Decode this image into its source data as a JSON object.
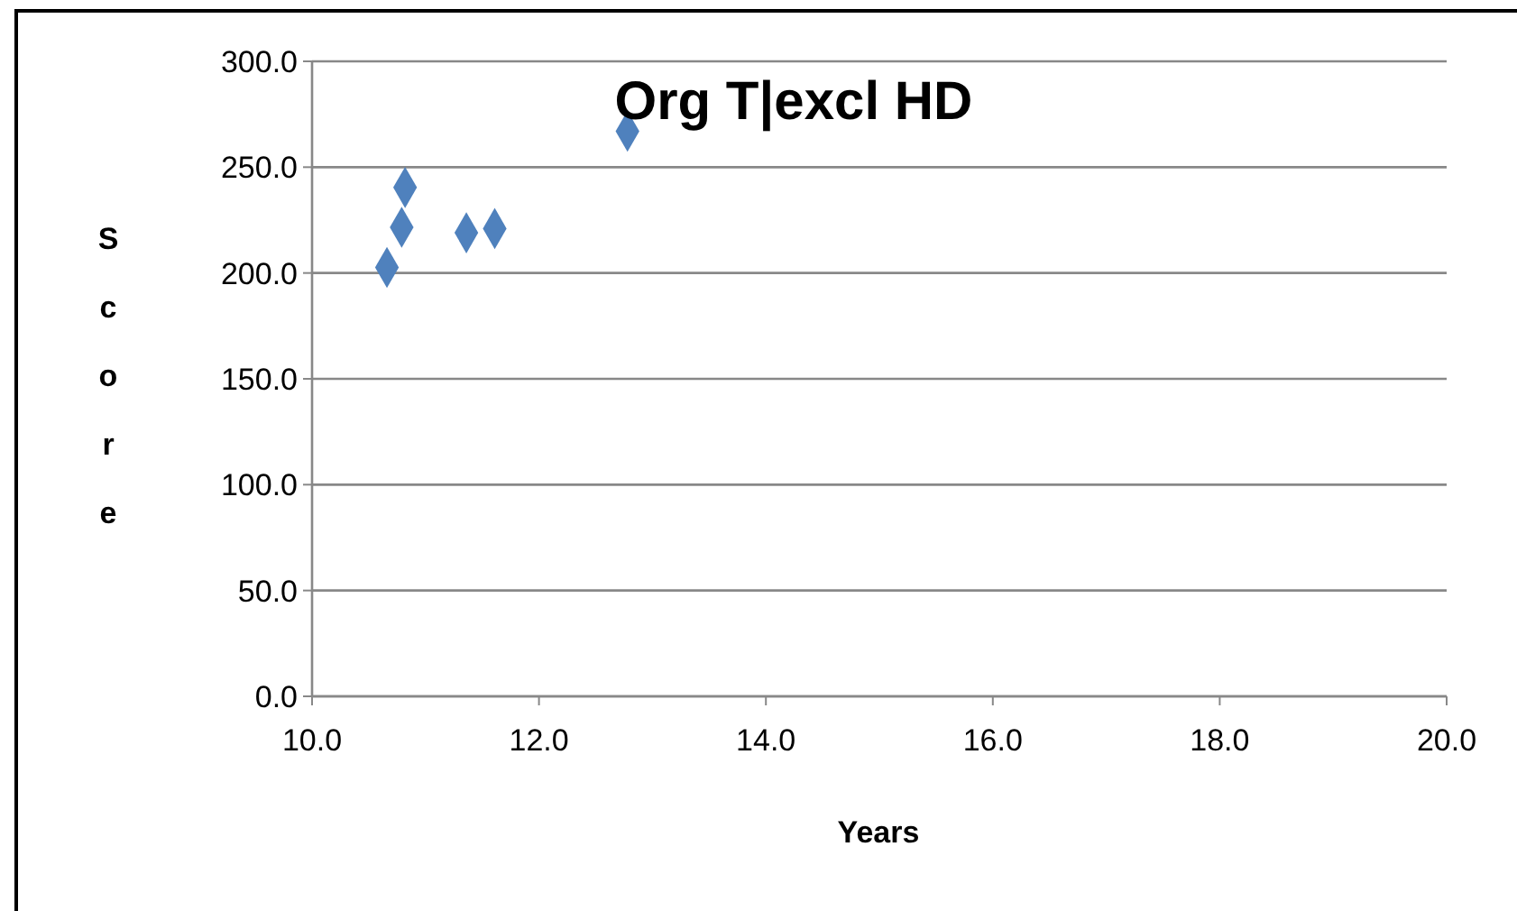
{
  "chart_data": {
    "type": "scatter",
    "title": "Org T|excl HD",
    "xlabel": "Years",
    "ylabel": "Score",
    "x": [
      10.66,
      10.79,
      10.82,
      11.36,
      11.61,
      12.78
    ],
    "series": [
      {
        "color": "#4f81bd",
        "values": [
          202.6,
          221.6,
          240.4,
          219,
          221,
          267
        ]
      }
    ],
    "xlim": [
      10,
      20
    ],
    "xticks": [
      {
        "value": 10,
        "label": "10.0"
      },
      {
        "value": 12,
        "label": "12.0"
      },
      {
        "value": 14,
        "label": "14.0"
      },
      {
        "value": 16,
        "label": "16.0"
      },
      {
        "value": 18,
        "label": "18.0"
      },
      {
        "value": 20,
        "label": "20.0"
      }
    ],
    "ylim": [
      0,
      300
    ],
    "yticks": [
      {
        "value": 0,
        "label": "0.0"
      },
      {
        "value": 50,
        "label": "50.0"
      },
      {
        "value": 100,
        "label": "100.0"
      },
      {
        "value": 150,
        "label": "150.0"
      },
      {
        "value": 200,
        "label": "200.0"
      },
      {
        "value": 250,
        "label": "250.0"
      },
      {
        "value": 300,
        "label": "300.0"
      }
    ],
    "grid": "y",
    "marker": "diamond"
  }
}
